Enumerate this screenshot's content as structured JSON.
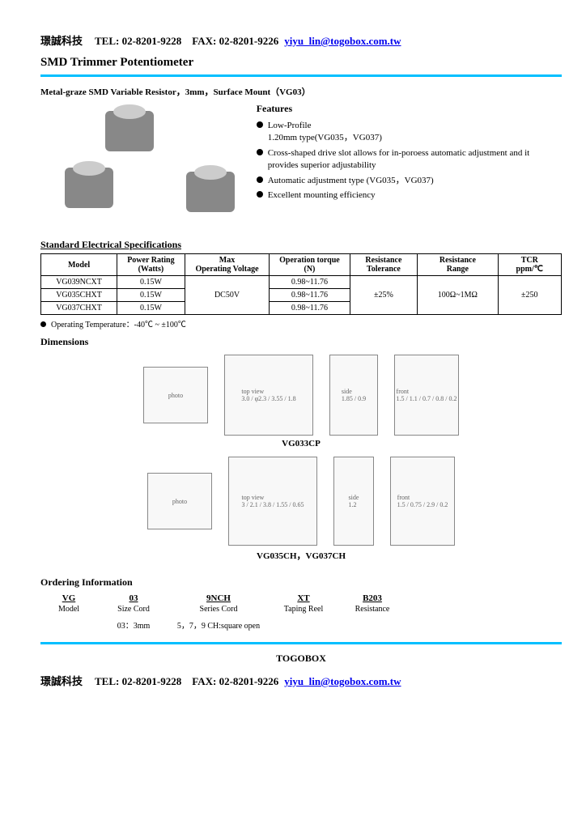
{
  "header": {
    "company": "璟誠科技",
    "tel": "TEL: 02-8201-9228",
    "fax": "FAX: 02-8201-9226",
    "email": "yiyu_lin@togobox.com.tw"
  },
  "title": "SMD Trimmer Potentiometer",
  "subtitle": "Metal-graze SMD Variable Resistor，3mm，Surface Mount（VG03）",
  "features": {
    "heading": "Features",
    "items": [
      "Low-Profile\n1.20mm type(VG035，VG037)",
      "Cross-shaped drive slot allows for in-poroess automatic adjustment and it provides superior adjustability",
      "Automatic adjustment type (VG035，VG037)",
      "Excellent mounting efficiency"
    ]
  },
  "spec_section": "Standard Electrical Specifications",
  "spec_table": {
    "headers": [
      "Model",
      "Power Rating\n(Watts)",
      "Max\nOperating Voltage",
      "Operation torque\n(N)",
      "Resistance\nTolerance",
      "Resistance\nRange",
      "TCR\nppm/℃"
    ],
    "rows": [
      [
        "VG039NCXT",
        "0.15W",
        "DC50V",
        "0.98~11.76",
        "±25%",
        "100Ω~1MΩ",
        "±250"
      ],
      [
        "VG035CHXT",
        "0.15W",
        "",
        "0.98~11.76",
        "",
        "",
        ""
      ],
      [
        "VG037CHXT",
        "0.15W",
        "",
        "0.98~11.76",
        "",
        "",
        ""
      ]
    ],
    "col_widths": [
      "90px",
      "80px",
      "100px",
      "95px",
      "80px",
      "95px",
      "75px"
    ]
  },
  "note": "Operating Temperature：-40℃ ~ ±100℃",
  "dimensions_heading": "Dimensions",
  "dim_labels": [
    "VG033CP",
    "VG035CH，VG037CH"
  ],
  "ordering": {
    "heading": "Ordering Information",
    "cols": [
      {
        "head": "VG",
        "sub": "Model",
        "detail": ""
      },
      {
        "head": "03",
        "sub": "Size Cord",
        "detail": "03：3mm"
      },
      {
        "head": "9NCH",
        "sub": "Series Cord",
        "detail": "5，7，9 CH:square open"
      },
      {
        "head": "XT",
        "sub": "Taping Reel",
        "detail": ""
      },
      {
        "head": "B203",
        "sub": "Resistance",
        "detail": ""
      }
    ],
    "col_widths": [
      "70px",
      "90px",
      "120px",
      "90px",
      "80px"
    ]
  },
  "footer_brand": "TOGOBOX",
  "colors": {
    "divider": "#00bfff",
    "link": "#0000ee"
  }
}
